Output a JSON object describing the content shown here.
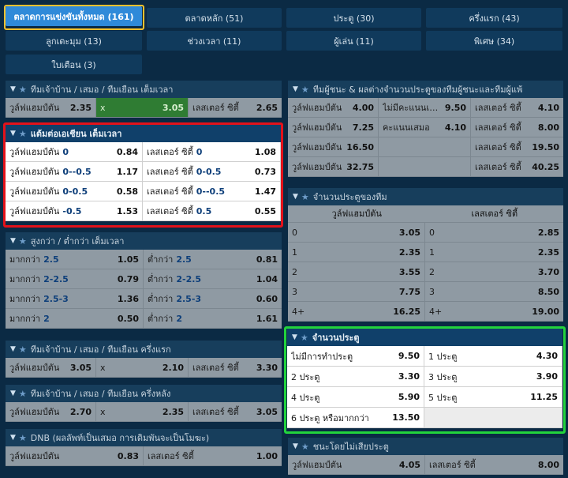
{
  "tabs": [
    {
      "label": "ตลาดการแข่งขันทั้งหมด (161)",
      "active": true
    },
    {
      "label": "ตลาดหลัก (51)"
    },
    {
      "label": "ประตู (30)"
    },
    {
      "label": "ครึ่งแรก (43)"
    },
    {
      "label": "ลูกเตะมุม (13)"
    },
    {
      "label": "ช่วงเวลา (11)"
    },
    {
      "label": "ผู้เล่น (11)"
    },
    {
      "label": "พิเศษ (34)"
    },
    {
      "label": "ใบเตือน (3)"
    }
  ],
  "colors": {
    "background": "#0b2a44",
    "tab_active": "#2f8ad9",
    "highlight_yellow": "#f2c12e",
    "highlight_red": "#e3121a",
    "highlight_green": "#22d33c"
  },
  "icons": {
    "collapse": "chevron-down-icon",
    "favorite": "star-icon"
  },
  "m1x2": {
    "title": "ทีมเจ้าบ้าน / เสมอ / ทีมเยือน เต็มเวลา",
    "home": "วูล์ฟแฮมป์ตัน",
    "home_odd": "2.35",
    "draw": "x",
    "draw_odd": "3.05",
    "away": "เลสเตอร์ ซิตี้",
    "away_odd": "2.65"
  },
  "asian": {
    "title": "แต้มต่อเอเชียน เต็มเวลา",
    "rows": [
      {
        "home": "วูล์ฟแฮมป์ตัน",
        "home_hcp": "0",
        "home_odd": "0.84",
        "away": "เลสเตอร์ ซิตี้",
        "away_hcp": "0",
        "away_odd": "1.08"
      },
      {
        "home": "วูล์ฟแฮมป์ตัน",
        "home_hcp": "0--0.5",
        "home_odd": "1.17",
        "away": "เลสเตอร์ ซิตี้",
        "away_hcp": "0-0.5",
        "away_odd": "0.73"
      },
      {
        "home": "วูล์ฟแฮมป์ตัน",
        "home_hcp": "0-0.5",
        "home_odd": "0.58",
        "away": "เลสเตอร์ ซิตี้",
        "away_hcp": "0--0.5",
        "away_odd": "1.47"
      },
      {
        "home": "วูล์ฟแฮมป์ตัน",
        "home_hcp": "-0.5",
        "home_odd": "1.53",
        "away": "เลสเตอร์ ซิตี้",
        "away_hcp": "0.5",
        "away_odd": "0.55"
      }
    ]
  },
  "ou": {
    "title": "สูงกว่า / ต่ำกว่า เต็มเวลา",
    "rows": [
      {
        "over": "มากกว่า",
        "over_line": "2.5",
        "over_odd": "1.05",
        "under": "ต่ำกว่า",
        "under_line": "2.5",
        "under_odd": "0.81"
      },
      {
        "over": "มากกว่า",
        "over_line": "2-2.5",
        "over_odd": "0.79",
        "under": "ต่ำกว่า",
        "under_line": "2-2.5",
        "under_odd": "1.04"
      },
      {
        "over": "มากกว่า",
        "over_line": "2.5-3",
        "over_odd": "1.36",
        "under": "ต่ำกว่า",
        "under_line": "2.5-3",
        "under_odd": "0.60"
      },
      {
        "over": "มากกว่า",
        "over_line": "2",
        "over_odd": "0.50",
        "under": "ต่ำกว่า",
        "under_line": "2",
        "under_odd": "1.61"
      }
    ]
  },
  "m1x2_fh": {
    "title": "ทีมเจ้าบ้าน / เสมอ / ทีมเยือน ครึ่งแรก",
    "home": "วูล์ฟแฮมป์ตัน",
    "home_odd": "3.05",
    "draw": "x",
    "draw_odd": "2.10",
    "away": "เลสเตอร์ ซิตี้",
    "away_odd": "3.30"
  },
  "m1x2_sh": {
    "title": "ทีมเจ้าบ้าน / เสมอ / ทีมเยือน ครึ่งหลัง",
    "home": "วูล์ฟแฮมป์ตัน",
    "home_odd": "2.70",
    "draw": "x",
    "draw_odd": "2.35",
    "away": "เลสเตอร์ ซิตี้",
    "away_odd": "3.05"
  },
  "dnb": {
    "title": "DNB (ผลลัพท์เป็นเสมอ การเดิมพันจะเป็นโมฆะ)",
    "home": "วูล์ฟแฮมป์ตัน",
    "home_odd": "0.83",
    "away": "เลสเตอร์ ซิตี้",
    "away_odd": "1.00"
  },
  "winmargin": {
    "title": "ทีมผู้ชนะ & ผลต่างจำนวนประตูของทีมผู้ชนะและทีมผู้แพ้",
    "rows": [
      {
        "a": "วูล์ฟแฮมป์ตัน",
        "a_odd": "4.00",
        "b": "ไม่มีคะแนนเสมอ",
        "b_odd": "9.50",
        "c": "เลสเตอร์ ซิตี้",
        "c_odd": "4.10"
      },
      {
        "a": "วูล์ฟแฮมป์ตัน",
        "a_odd": "7.25",
        "b": "คะแนนเสมอ",
        "b_odd": "4.10",
        "c": "เลสเตอร์ ซิตี้",
        "c_odd": "8.00"
      },
      {
        "a": "วูล์ฟแฮมป์ตัน",
        "a_odd": "16.50",
        "c": "เลสเตอร์ ซิตี้",
        "c_odd": "19.50"
      },
      {
        "a": "วูล์ฟแฮมป์ตัน",
        "a_odd": "32.75",
        "c": "เลสเตอร์ ซิตี้",
        "c_odd": "40.25"
      }
    ]
  },
  "teamgoals": {
    "title": "จำนวนประตูของทีม",
    "home": "วูล์ฟแฮมป์ตัน",
    "away": "เลสเตอร์ ซิตี้",
    "rows": [
      {
        "h": "0",
        "h_odd": "3.05",
        "a": "0",
        "a_odd": "2.85"
      },
      {
        "h": "1",
        "h_odd": "2.35",
        "a": "1",
        "a_odd": "2.35"
      },
      {
        "h": "2",
        "h_odd": "3.55",
        "a": "2",
        "a_odd": "3.70"
      },
      {
        "h": "3",
        "h_odd": "7.75",
        "a": "3",
        "a_odd": "8.50"
      },
      {
        "h": "4+",
        "h_odd": "16.25",
        "a": "4+",
        "a_odd": "19.00"
      }
    ]
  },
  "goals": {
    "title": "จำนวนประตู",
    "rows": [
      {
        "l": "ไม่มีการทำประตู",
        "l_odd": "9.50",
        "r": "1 ประตู",
        "r_odd": "4.30"
      },
      {
        "l": "2 ประตู",
        "l_odd": "3.30",
        "r": "3 ประตู",
        "r_odd": "3.90"
      },
      {
        "l": "4 ประตู",
        "l_odd": "5.90",
        "r": "5 ประตู",
        "r_odd": "11.25"
      },
      {
        "l": "6 ประตู หรือมากกว่า",
        "l_odd": "13.50"
      }
    ]
  },
  "winnil": {
    "title": "ชนะโดยไม่เสียประตู",
    "home": "วูล์ฟแฮมป์ตัน",
    "home_odd": "4.05",
    "away": "เลสเตอร์ ซิตี้",
    "away_odd": "8.00"
  }
}
